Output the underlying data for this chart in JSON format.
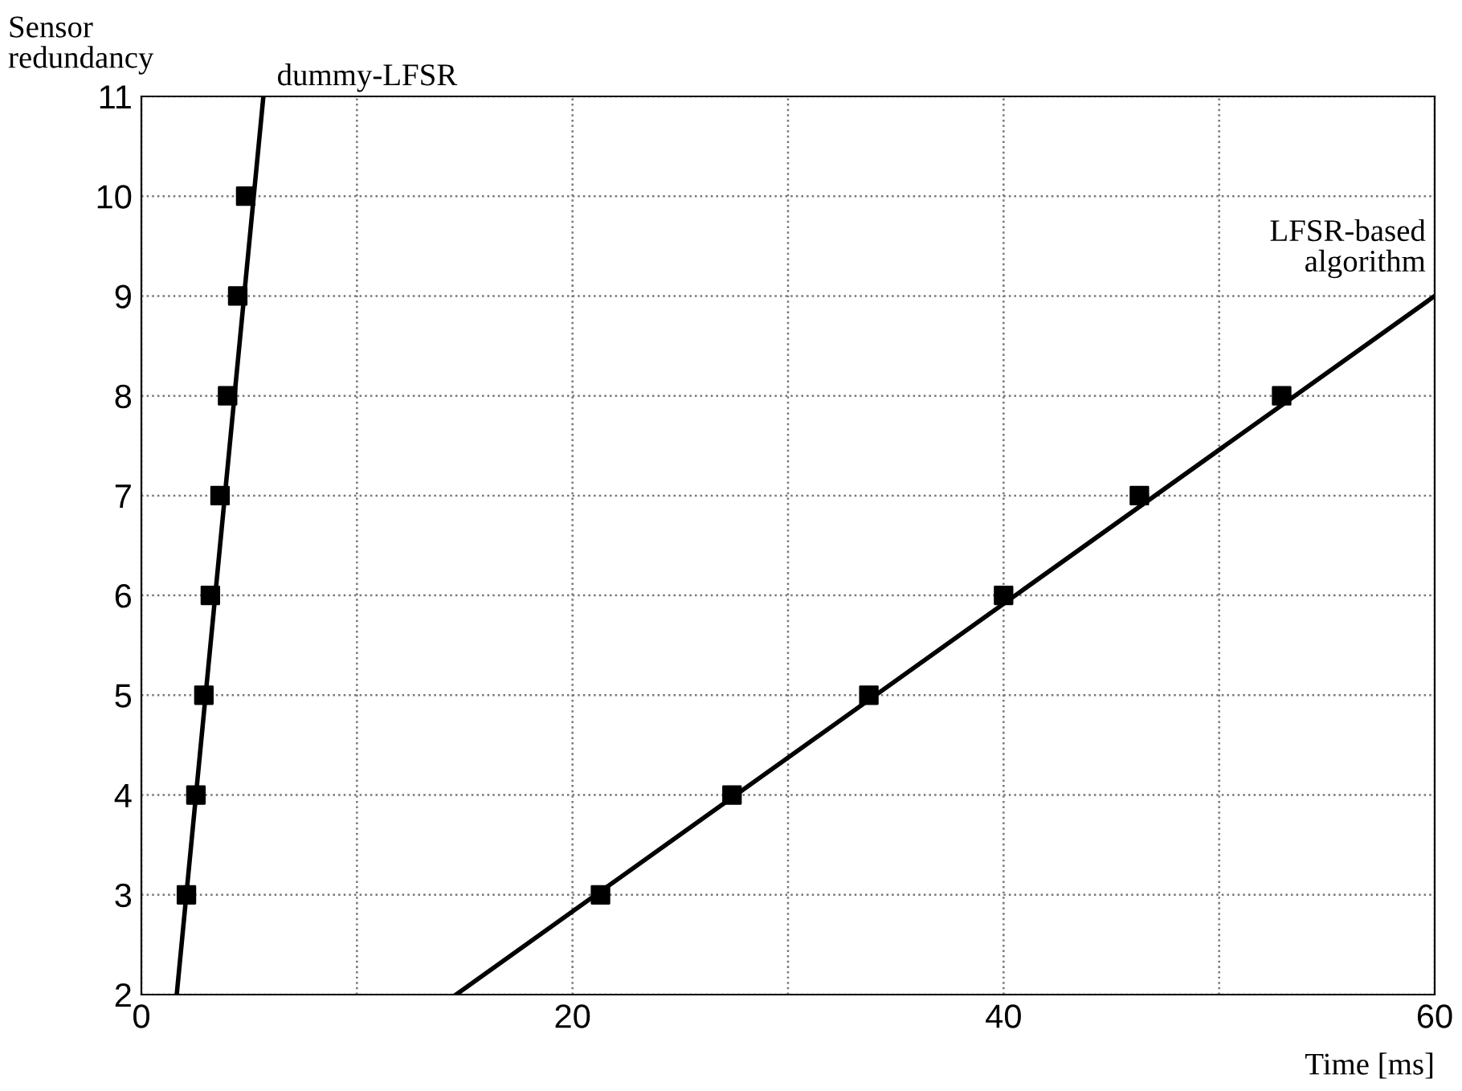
{
  "chart_data": {
    "type": "scatter",
    "xlabel": "Time [ms]",
    "ylabel": "Sensor\nredundancy",
    "xlim": [
      0,
      60
    ],
    "ylim": [
      2,
      11
    ],
    "xticks": [
      0,
      {
        "value": 10,
        "label": null
      },
      20,
      {
        "value": 30,
        "label": null
      },
      40,
      {
        "value": 50,
        "label": null
      },
      60
    ],
    "yticks": [
      2,
      3,
      4,
      5,
      6,
      7,
      8,
      9,
      10,
      11
    ],
    "grid": true,
    "marker": "square",
    "legend": false,
    "series": [
      {
        "type": "line",
        "name": "dummy-LFSR",
        "color": "#000000",
        "x": [
          1.64,
          5.66
        ],
        "values": [
          2,
          11
        ],
        "marker": "none",
        "line_style": "solid"
      },
      {
        "color": "#000000",
        "x": [
          2.09,
          2.53,
          2.9,
          3.2,
          3.65,
          4.0,
          4.47,
          4.84
        ],
        "values": [
          3,
          4,
          5,
          6,
          7,
          8,
          9,
          10
        ]
      },
      {
        "type": "line",
        "name": "LFSR-based\nalgorithm",
        "color": "#000000",
        "x": [
          14.6,
          60
        ],
        "values": [
          2,
          9
        ],
        "marker": "none",
        "line_style": "solid"
      },
      {
        "color": "#000000",
        "x": [
          21.3,
          27.4,
          33.75,
          40.0,
          46.3,
          52.9
        ],
        "values": [
          3,
          4,
          5,
          6,
          7,
          8
        ]
      }
    ]
  }
}
